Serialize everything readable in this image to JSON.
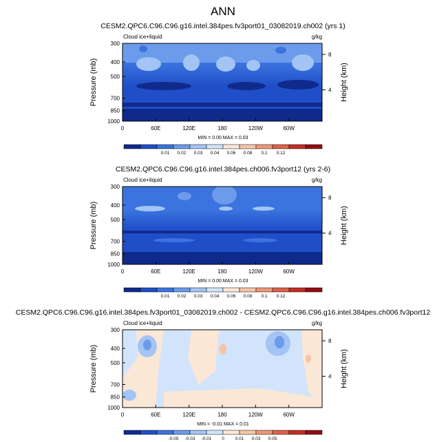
{
  "page_title": "ANN",
  "chart_data": [
    {
      "type": "contour",
      "title": "CESM2.QPC6.C96.C96.g16.intel.384pes.fv3port01_03082019.ch002 (yrs 1)",
      "variable_label": "Cloud ice+liquid",
      "units_label": "g/kg",
      "ylabel": "Pressure (mb)",
      "y2label": "Height (km)",
      "xticks": [
        "0",
        "60E",
        "120E",
        "180",
        "120W",
        "60W"
      ],
      "yticks": [
        "300",
        "400",
        "500",
        "700",
        "850",
        "1000"
      ],
      "y2ticks": [
        "8",
        "4"
      ],
      "stats": {
        "min": "0.00",
        "max": "0.03"
      },
      "stats_text": "MIN =  0.00  MAX =  0.03",
      "colorbar": {
        "labels": [
          "0.01",
          "0.02",
          "0.03",
          "0.04",
          "0.06",
          "0.08",
          "0.1",
          "0.12"
        ],
        "colors": [
          "#102a8c",
          "#1f4ec8",
          "#3b74de",
          "#6c9bec",
          "#a3c4f4",
          "#d2e4fb",
          "#fbe7d6",
          "#f6c4a5",
          "#ee9777",
          "#de6148",
          "#c42d22",
          "#8f0f12"
        ]
      }
    },
    {
      "type": "contour",
      "title": "CESM2.QPC6.C96.C96.g16.intel.384pes.ch006.fv3port12 (yrs 2-6)",
      "variable_label": "Cloud ice+liquid",
      "units_label": "g/kg",
      "ylabel": "Pressure (mb)",
      "y2label": "Height (km)",
      "xticks": [
        "0",
        "60E",
        "120E",
        "180",
        "120W",
        "60W"
      ],
      "yticks": [
        "300",
        "400",
        "500",
        "700",
        "850",
        "1000"
      ],
      "y2ticks": [
        "8",
        "4"
      ],
      "stats": {
        "min": "0.00",
        "max": "0.03"
      },
      "stats_text": "MIN =  0.00  MAX =  0.03",
      "colorbar": {
        "labels": [
          "0.01",
          "0.02",
          "0.03",
          "0.04",
          "0.06",
          "0.08",
          "0.1",
          "0.12"
        ],
        "colors": [
          "#102a8c",
          "#1f4ec8",
          "#3b74de",
          "#6c9bec",
          "#a3c4f4",
          "#d2e4fb",
          "#fbe7d6",
          "#f6c4a5",
          "#ee9777",
          "#de6148",
          "#c42d22",
          "#8f0f12"
        ]
      }
    },
    {
      "type": "contour",
      "title": "CESM2.QPC6.C96.C96.g16.intel.384pes.fv3port01_03082019.ch002 - CESM2.QPC6.C96.C96.g16.intel.384pes.ch006.fv3port12",
      "variable_label": "Cloud ice+liquid",
      "units_label": "g/kg",
      "ylabel": "Pressure (mb)",
      "y2label": "Height (km)",
      "xticks": [
        "0",
        "60E",
        "120E",
        "180",
        "120W",
        "60W"
      ],
      "yticks": [
        "300",
        "400",
        "500",
        "700",
        "850",
        "1000"
      ],
      "y2ticks": [
        "8",
        "4"
      ],
      "stats": {
        "min": "-0.01",
        "max": "0.01"
      },
      "stats_text": "MIN = -0.01  MAX =  0.01",
      "colorbar": {
        "labels": [
          "-0.05",
          "-0.03",
          "-0.01",
          "0",
          "0.01",
          "0.03",
          "0.05"
        ],
        "colors": [
          "#102a8c",
          "#1f4ec8",
          "#3b74de",
          "#6c9bec",
          "#a3c4f4",
          "#d2e4fb",
          "#fbe7d6",
          "#f6c4a5",
          "#ee9777",
          "#de6148",
          "#c42d22",
          "#8f0f12"
        ]
      }
    }
  ]
}
